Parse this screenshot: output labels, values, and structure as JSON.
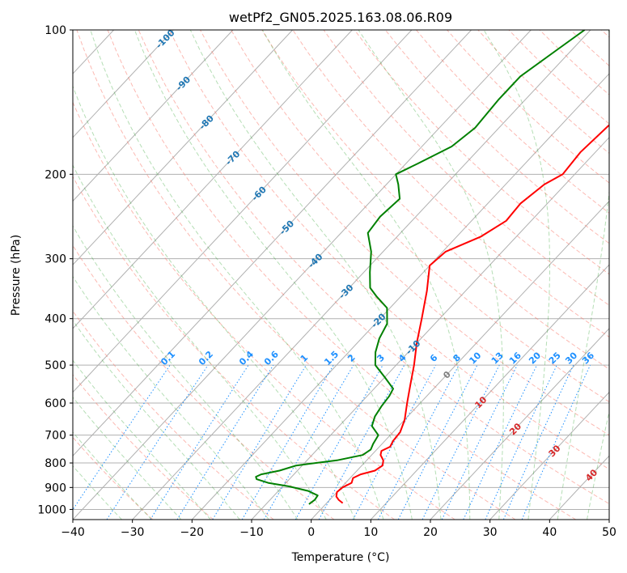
{
  "chart_data": {
    "type": "line",
    "title": "wetPf2_GN05.2025.163.08.06.R09",
    "xlabel": "Temperature (°C)",
    "ylabel": "Pressure (hPa)",
    "xlim": [
      -40,
      50
    ],
    "ylim": [
      1050,
      100
    ],
    "y_scale": "log",
    "grid": true,
    "x_ticks": [
      "−40",
      "−30",
      "−20",
      "−10",
      "0",
      "10",
      "20",
      "30",
      "40",
      "50"
    ],
    "y_ticks": [
      "100",
      "200",
      "300",
      "400",
      "500",
      "600",
      "700",
      "800",
      "900",
      "1000"
    ],
    "isotherm_labels": [
      "-100",
      "-90",
      "-80",
      "-70",
      "-60",
      "-50",
      "-40",
      "-30",
      "-20",
      "-10",
      "0",
      "10",
      "20",
      "30",
      "40"
    ],
    "mixing_ratio_labels": [
      "0.1",
      "0.2",
      "0.4",
      "0.6",
      "1",
      "1.5",
      "2",
      "3",
      "4",
      "6",
      "8",
      "10",
      "13",
      "16",
      "20",
      "25",
      "30",
      "36"
    ],
    "colors": {
      "temperature": "#ff0000",
      "dewpoint": "#008000",
      "isotherm_label": "#1f77b4",
      "warm_isotherm_label": "#d62728",
      "mixing_ratio": "#1e90ff",
      "dry_adiabat": "#fa8072",
      "moist_adiabat": "#2ca02c",
      "grid": "#b0b0b0"
    },
    "series": [
      {
        "points": [
          {
            "p": 970,
            "t": 2.7
          },
          {
            "p": 955,
            "t": 1.5
          },
          {
            "p": 940,
            "t": 0.6
          },
          {
            "p": 920,
            "t": 0.0
          },
          {
            "p": 900,
            "t": 0.2
          },
          {
            "p": 880,
            "t": 1.0
          },
          {
            "p": 860,
            "t": 0.5
          },
          {
            "p": 845,
            "t": 1.2
          },
          {
            "p": 830,
            "t": 3.0
          },
          {
            "p": 810,
            "t": 3.5
          },
          {
            "p": 790,
            "t": 2.8
          },
          {
            "p": 770,
            "t": 1.5
          },
          {
            "p": 755,
            "t": 1.0
          },
          {
            "p": 740,
            "t": 1.8
          },
          {
            "p": 720,
            "t": 1.4
          },
          {
            "p": 690,
            "t": 1.2
          },
          {
            "p": 650,
            "t": 0.0
          },
          {
            "p": 600,
            "t": -2.2
          },
          {
            "p": 550,
            "t": -4.5
          },
          {
            "p": 500,
            "t": -7.0
          },
          {
            "p": 450,
            "t": -10.0
          },
          {
            "p": 400,
            "t": -13.0
          },
          {
            "p": 350,
            "t": -16.5
          },
          {
            "p": 310,
            "t": -20.0
          },
          {
            "p": 290,
            "t": -19.5
          },
          {
            "p": 270,
            "t": -16.0
          },
          {
            "p": 250,
            "t": -14.2
          },
          {
            "p": 230,
            "t": -14.5
          },
          {
            "p": 210,
            "t": -13.5
          },
          {
            "p": 200,
            "t": -12.0
          },
          {
            "p": 180,
            "t": -12.5
          },
          {
            "p": 160,
            "t": -12.0
          },
          {
            "p": 140,
            "t": -11.5
          },
          {
            "p": 130,
            "t": -11.0
          },
          {
            "p": 120,
            "t": -9.5
          },
          {
            "p": 110,
            "t": -7.5
          },
          {
            "p": 100,
            "t": -6.0
          }
        ]
      },
      {
        "points": [
          {
            "p": 975,
            "t": -2.8
          },
          {
            "p": 955,
            "t": -2.5
          },
          {
            "p": 935,
            "t": -2.7
          },
          {
            "p": 915,
            "t": -5.0
          },
          {
            "p": 895,
            "t": -9.0
          },
          {
            "p": 880,
            "t": -13.0
          },
          {
            "p": 865,
            "t": -15.5
          },
          {
            "p": 855,
            "t": -16.0
          },
          {
            "p": 845,
            "t": -15.5
          },
          {
            "p": 830,
            "t": -13.0
          },
          {
            "p": 810,
            "t": -11.0
          },
          {
            "p": 790,
            "t": -5.0
          },
          {
            "p": 770,
            "t": -1.5
          },
          {
            "p": 750,
            "t": -1.0
          },
          {
            "p": 730,
            "t": -1.5
          },
          {
            "p": 700,
            "t": -2.0
          },
          {
            "p": 670,
            "t": -4.5
          },
          {
            "p": 640,
            "t": -5.5
          },
          {
            "p": 610,
            "t": -6.0
          },
          {
            "p": 580,
            "t": -6.3
          },
          {
            "p": 560,
            "t": -6.8
          },
          {
            "p": 530,
            "t": -10.0
          },
          {
            "p": 500,
            "t": -13.5
          },
          {
            "p": 470,
            "t": -15.5
          },
          {
            "p": 440,
            "t": -17.0
          },
          {
            "p": 410,
            "t": -18.0
          },
          {
            "p": 380,
            "t": -20.5
          },
          {
            "p": 360,
            "t": -24.0
          },
          {
            "p": 345,
            "t": -26.5
          },
          {
            "p": 320,
            "t": -29.0
          },
          {
            "p": 290,
            "t": -32.0
          },
          {
            "p": 265,
            "t": -35.5
          },
          {
            "p": 245,
            "t": -36.0
          },
          {
            "p": 225,
            "t": -35.5
          },
          {
            "p": 210,
            "t": -38.0
          },
          {
            "p": 200,
            "t": -40.0
          },
          {
            "p": 190,
            "t": -38.0
          },
          {
            "p": 175,
            "t": -35.0
          },
          {
            "p": 160,
            "t": -34.0
          },
          {
            "p": 140,
            "t": -34.5
          },
          {
            "p": 125,
            "t": -34.5
          },
          {
            "p": 110,
            "t": -32.5
          },
          {
            "p": 100,
            "t": -31.0
          }
        ]
      }
    ]
  }
}
